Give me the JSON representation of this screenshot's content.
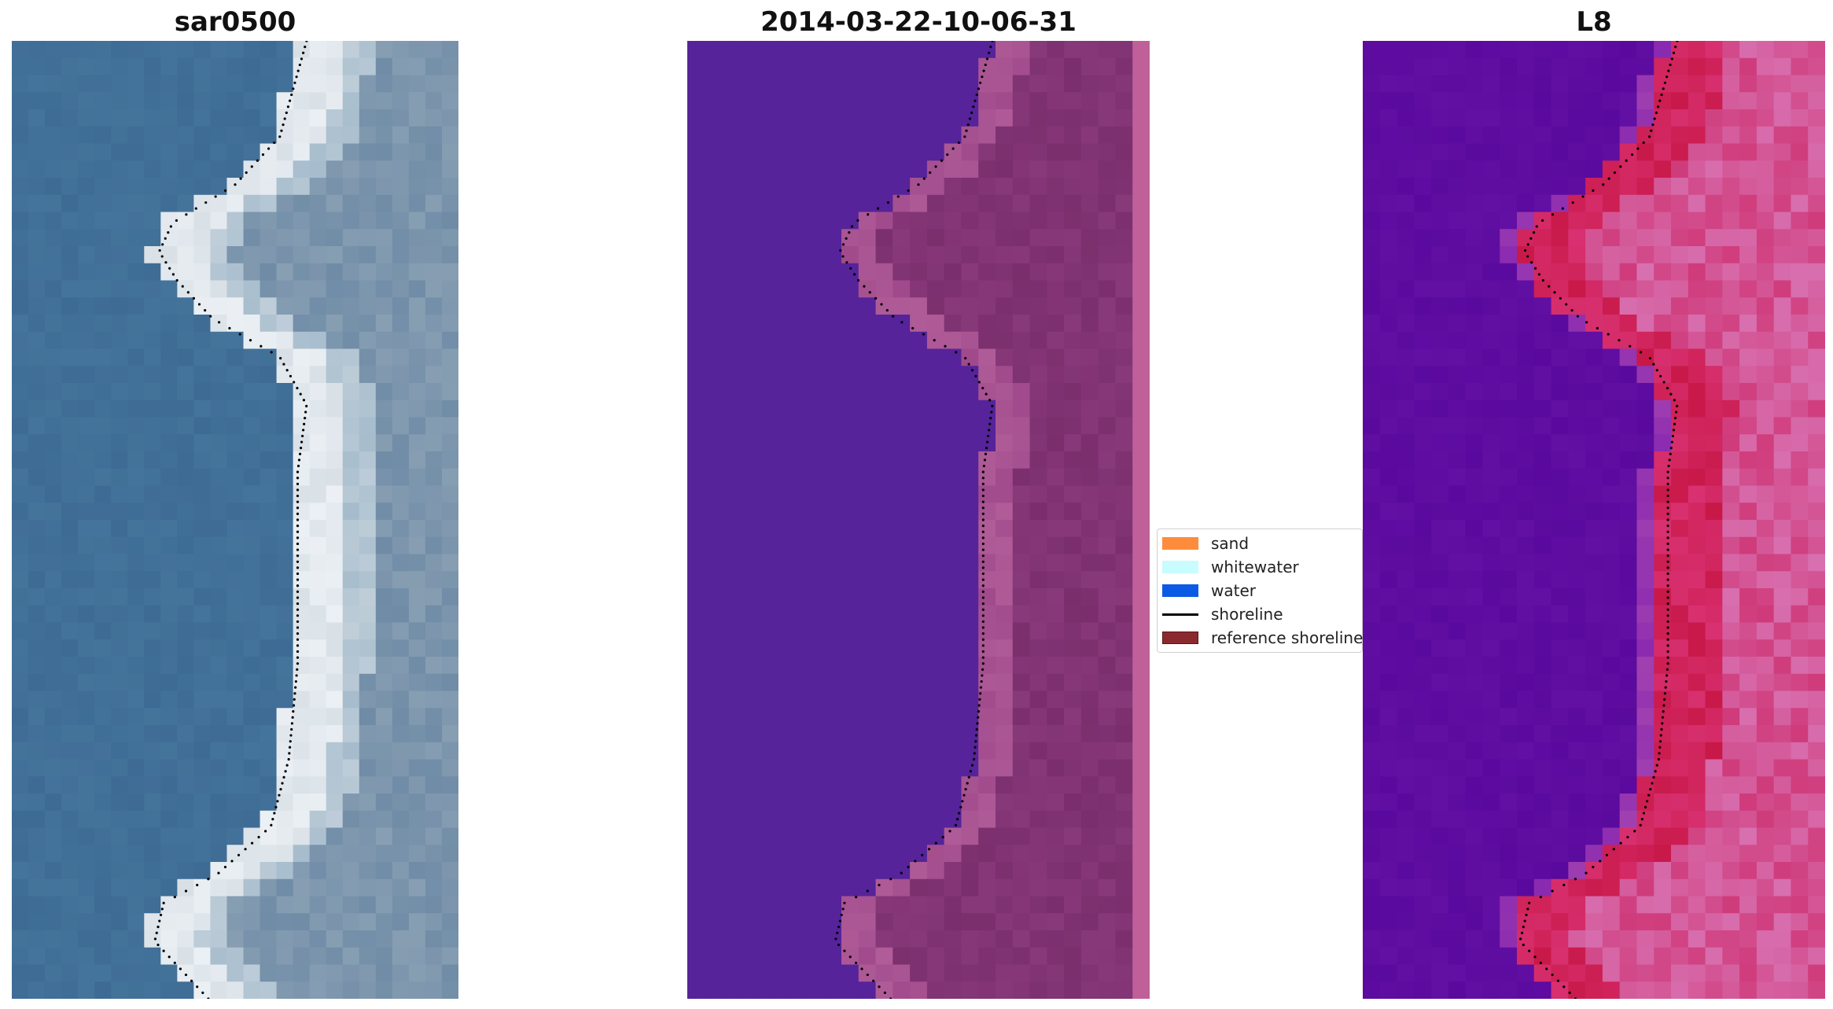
{
  "panels": [
    {
      "title": "sar0500",
      "kind": "rgb"
    },
    {
      "title": "2014-03-22-10-06-31",
      "kind": "classified"
    },
    {
      "title": "L8",
      "kind": "index"
    }
  ],
  "legend": {
    "items": [
      {
        "label": "sand",
        "color": "#ff8c3c",
        "type": "patch"
      },
      {
        "label": "whitewater",
        "color": "#c8fcff",
        "type": "patch"
      },
      {
        "label": "water",
        "color": "#0a5ae6",
        "type": "patch"
      },
      {
        "label": "shoreline",
        "color": "#000000",
        "type": "line"
      },
      {
        "label": "reference shoreline",
        "color": "#8b2a2e",
        "type": "patch"
      }
    ]
  },
  "colors": {
    "rgb_water": "#3d6b94",
    "rgb_land": "#6f8ba6",
    "rgb_sand": "#d8e0e6",
    "class_water": "#56239a",
    "class_land": "#7a2e6c",
    "index_water": "#5a099e",
    "index_land": "#cf3a7a"
  }
}
